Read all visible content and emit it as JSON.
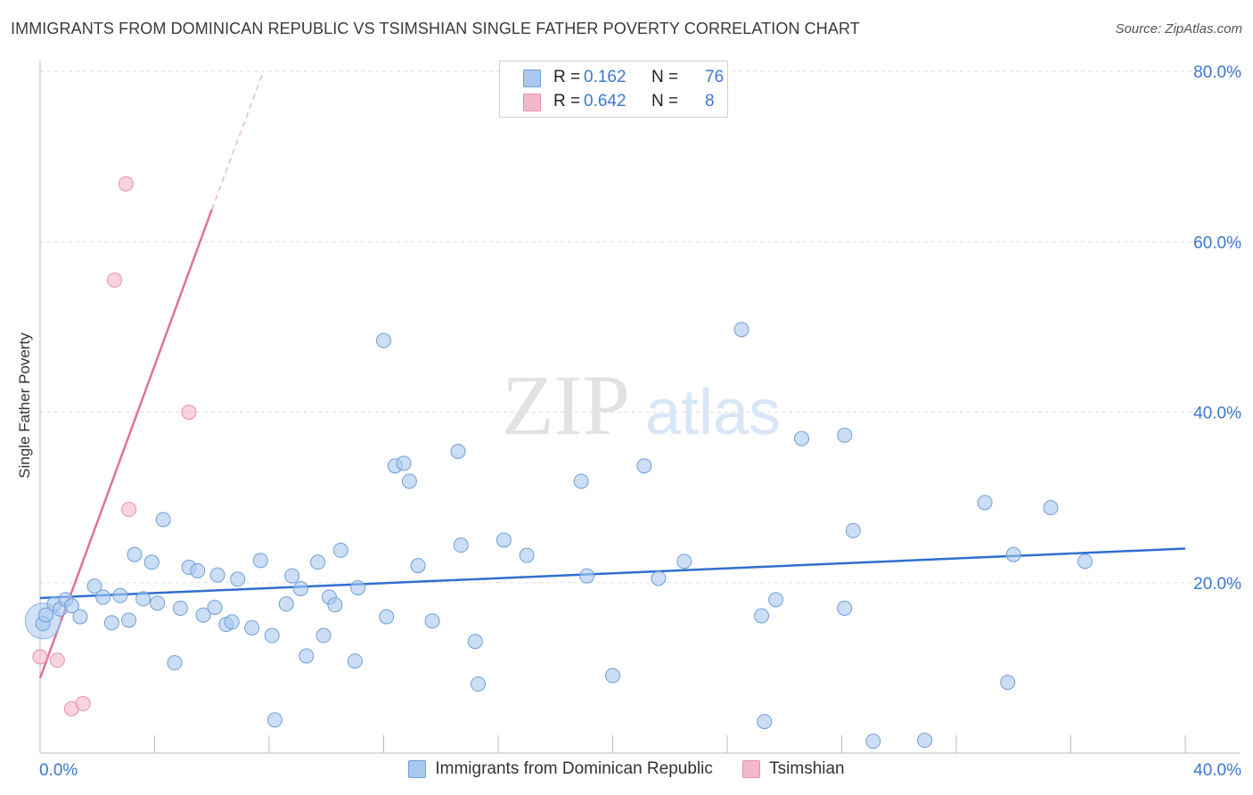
{
  "title": "IMMIGRANTS FROM DOMINICAN REPUBLIC VS TSIMSHIAN SINGLE FATHER POVERTY CORRELATION CHART",
  "source": "Source: ZipAtlas.com",
  "watermark": {
    "zip": "ZIP",
    "atlas": "atlas"
  },
  "colors": {
    "blue": "#3a78d0",
    "blue_fill": "#a9c8ef",
    "pink": "#e07098",
    "pink_fill": "#f4b8cb",
    "grid": "#dddddd",
    "axis_text": "#3a78d0"
  },
  "stats": [
    {
      "r_label": "R =",
      "r_value": "0.162",
      "n_label": "N =",
      "n_value": "76"
    },
    {
      "r_label": "R =",
      "r_value": "0.642",
      "n_label": "N =",
      "n_value": "8"
    }
  ],
  "legend": [
    {
      "label": "Immigrants from Dominican Republic"
    },
    {
      "label": "Tsimshian"
    }
  ],
  "chart_data": {
    "type": "scatter",
    "title": "IMMIGRANTS FROM DOMINICAN REPUBLIC VS TSIMSHIAN SINGLE FATHER POVERTY CORRELATION CHART",
    "xlabel": "",
    "ylabel": "Single Father Poverty",
    "xlim": [
      0,
      40
    ],
    "ylim": [
      0,
      80
    ],
    "x_tick_labels": [
      "0.0%",
      "40.0%"
    ],
    "y_ticks": [
      20,
      40,
      60,
      80
    ],
    "y_tick_labels": [
      "20.0%",
      "40.0%",
      "60.0%",
      "80.0%"
    ],
    "grid": true,
    "series": [
      {
        "name": "Immigrants from Dominican Republic",
        "color": "#3a78d0",
        "points": [
          [
            0.1,
            15.2
          ],
          [
            0.2,
            16.2
          ],
          [
            0.5,
            17.5
          ],
          [
            0.7,
            16.9
          ],
          [
            0.9,
            18.0
          ],
          [
            1.1,
            17.3
          ],
          [
            1.4,
            16.0
          ],
          [
            1.9,
            19.6
          ],
          [
            2.2,
            18.3
          ],
          [
            2.5,
            15.3
          ],
          [
            2.8,
            18.5
          ],
          [
            3.1,
            15.6
          ],
          [
            3.3,
            23.3
          ],
          [
            3.6,
            18.1
          ],
          [
            3.9,
            22.4
          ],
          [
            4.1,
            17.6
          ],
          [
            4.3,
            27.4
          ],
          [
            4.7,
            10.6
          ],
          [
            4.9,
            17.0
          ],
          [
            5.2,
            21.8
          ],
          [
            5.5,
            21.4
          ],
          [
            5.7,
            16.2
          ],
          [
            6.1,
            17.1
          ],
          [
            6.2,
            20.9
          ],
          [
            6.5,
            15.1
          ],
          [
            6.7,
            15.4
          ],
          [
            6.9,
            20.4
          ],
          [
            7.4,
            14.7
          ],
          [
            7.7,
            22.6
          ],
          [
            8.1,
            13.8
          ],
          [
            8.2,
            3.9
          ],
          [
            8.6,
            17.5
          ],
          [
            8.8,
            20.8
          ],
          [
            9.1,
            19.3
          ],
          [
            9.3,
            11.4
          ],
          [
            9.7,
            22.4
          ],
          [
            9.9,
            13.8
          ],
          [
            10.1,
            18.3
          ],
          [
            10.3,
            17.4
          ],
          [
            10.5,
            23.8
          ],
          [
            11.0,
            10.8
          ],
          [
            11.1,
            19.4
          ],
          [
            12.0,
            48.4
          ],
          [
            12.1,
            16.0
          ],
          [
            12.4,
            33.7
          ],
          [
            12.7,
            34.0
          ],
          [
            12.9,
            31.9
          ],
          [
            13.2,
            22.0
          ],
          [
            13.7,
            15.5
          ],
          [
            14.6,
            35.4
          ],
          [
            14.7,
            24.4
          ],
          [
            15.2,
            13.1
          ],
          [
            15.3,
            8.1
          ],
          [
            16.2,
            25.0
          ],
          [
            17.0,
            23.2
          ],
          [
            18.9,
            31.9
          ],
          [
            19.1,
            20.8
          ],
          [
            20.0,
            9.1
          ],
          [
            21.1,
            33.7
          ],
          [
            21.6,
            20.5
          ],
          [
            22.5,
            22.5
          ],
          [
            24.5,
            49.7
          ],
          [
            25.2,
            16.1
          ],
          [
            25.3,
            3.7
          ],
          [
            25.7,
            18.0
          ],
          [
            26.6,
            36.9
          ],
          [
            28.1,
            17.0
          ],
          [
            28.1,
            37.3
          ],
          [
            28.4,
            26.1
          ],
          [
            29.1,
            1.4
          ],
          [
            30.9,
            1.5
          ],
          [
            33.0,
            29.4
          ],
          [
            33.8,
            8.3
          ],
          [
            34.0,
            23.3
          ],
          [
            35.3,
            28.8
          ],
          [
            36.5,
            22.5
          ]
        ],
        "trend": {
          "x0": 0,
          "y0": 18.2,
          "x1": 40,
          "y1": 24.0
        }
      },
      {
        "name": "Tsimshian",
        "color": "#e07098",
        "points": [
          [
            0.0,
            11.3
          ],
          [
            0.6,
            10.9
          ],
          [
            1.1,
            5.2
          ],
          [
            1.5,
            5.8
          ],
          [
            2.6,
            55.5
          ],
          [
            3.0,
            66.8
          ],
          [
            3.1,
            28.6
          ],
          [
            5.2,
            40.0
          ]
        ],
        "trend": {
          "x0": 0,
          "y0": 8.8,
          "x1": 6.0,
          "y1": 63.8,
          "dash_x1": 7.8,
          "dash_y1": 80.0
        }
      }
    ]
  }
}
